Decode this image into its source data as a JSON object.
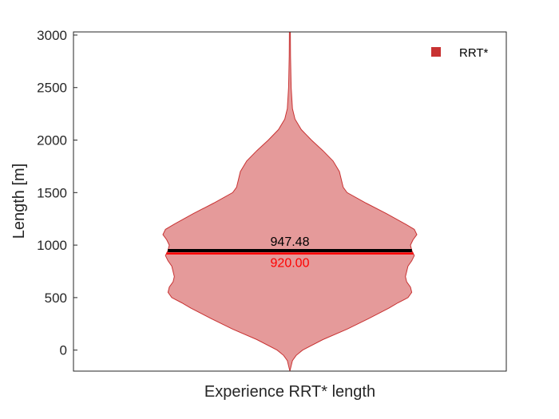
{
  "chart_data": {
    "type": "violin",
    "xlabel": "Experience RRT* length",
    "ylabel": "Length [m]",
    "ylim": [
      -200,
      3030
    ],
    "yticks": [
      0,
      500,
      1000,
      1500,
      2000,
      2500,
      3000
    ],
    "grid": false,
    "legend": {
      "position": "top-right",
      "entries": [
        {
          "label": "RRT*",
          "color": "#c83232"
        }
      ]
    },
    "series": [
      {
        "name": "RRT*",
        "fill_color": "#e59a9a",
        "edge_color": "#c83232",
        "mean": 947.48,
        "median": 920.0,
        "mean_label": "947.48",
        "median_label": "920.00",
        "density": [
          [
            -200,
            0.0
          ],
          [
            -100,
            0.02
          ],
          [
            -50,
            0.05
          ],
          [
            0,
            0.1
          ],
          [
            100,
            0.26
          ],
          [
            200,
            0.45
          ],
          [
            300,
            0.62
          ],
          [
            400,
            0.78
          ],
          [
            450,
            0.85
          ],
          [
            500,
            0.93
          ],
          [
            550,
            0.96
          ],
          [
            600,
            0.95
          ],
          [
            650,
            0.92
          ],
          [
            700,
            0.91
          ],
          [
            750,
            0.92
          ],
          [
            800,
            0.93
          ],
          [
            850,
            0.96
          ],
          [
            900,
            0.98
          ],
          [
            950,
            0.96
          ],
          [
            1000,
            0.95
          ],
          [
            1050,
            0.97
          ],
          [
            1100,
            1.0
          ],
          [
            1150,
            0.98
          ],
          [
            1200,
            0.91
          ],
          [
            1300,
            0.76
          ],
          [
            1400,
            0.6
          ],
          [
            1500,
            0.45
          ],
          [
            1550,
            0.42
          ],
          [
            1600,
            0.41
          ],
          [
            1700,
            0.39
          ],
          [
            1800,
            0.34
          ],
          [
            1900,
            0.26
          ],
          [
            2000,
            0.17
          ],
          [
            2100,
            0.09
          ],
          [
            2200,
            0.04
          ],
          [
            2300,
            0.02
          ],
          [
            2500,
            0.01
          ],
          [
            2800,
            0.005
          ],
          [
            3030,
            0.004
          ]
        ]
      }
    ]
  }
}
